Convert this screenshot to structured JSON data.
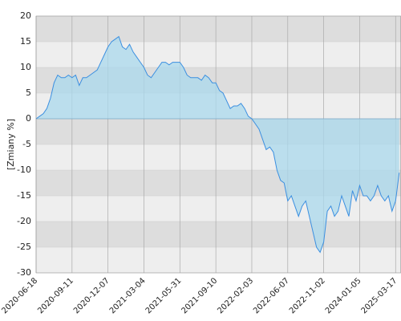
{
  "chart_data": {
    "type": "area",
    "ylabel": "[Zmiany %]",
    "categories": [
      "2020-06-18",
      null,
      null,
      null,
      null,
      null,
      null,
      null,
      null,
      null,
      "2020-09-11",
      null,
      null,
      null,
      null,
      null,
      null,
      null,
      null,
      null,
      "2020-12-07",
      null,
      null,
      null,
      null,
      null,
      null,
      null,
      null,
      null,
      "2021-03-04",
      null,
      null,
      null,
      null,
      null,
      null,
      null,
      null,
      null,
      "2021-05-31",
      null,
      null,
      null,
      null,
      null,
      null,
      null,
      null,
      null,
      "2021-09-10",
      null,
      null,
      null,
      null,
      null,
      null,
      null,
      null,
      null,
      "2022-02-03",
      null,
      null,
      null,
      null,
      null,
      null,
      null,
      null,
      null,
      "2022-06-07",
      null,
      null,
      null,
      null,
      null,
      null,
      null,
      null,
      null,
      "2022-11-02",
      null,
      null,
      null,
      null,
      null,
      null,
      null,
      null,
      null,
      "2024-01-05",
      null,
      null,
      null,
      null,
      null,
      null,
      null,
      null,
      null,
      "2025-03-17",
      null
    ],
    "values": [
      0,
      0.5,
      1,
      2,
      4,
      7,
      8.5,
      8,
      8,
      8.5,
      8,
      8.5,
      6.5,
      8,
      8,
      8.5,
      9,
      9.5,
      11,
      12.5,
      14,
      15,
      15.5,
      16,
      14,
      13.5,
      14.5,
      13,
      12,
      11,
      10,
      8.5,
      8,
      9,
      10,
      11,
      11,
      10.5,
      11,
      11,
      11,
      10,
      8.5,
      8,
      8,
      8,
      7.5,
      8.5,
      8,
      7,
      7,
      5.5,
      5,
      3.5,
      2,
      2.5,
      2.5,
      3,
      2,
      0.5,
      0,
      -1,
      -2,
      -4,
      -6,
      -5.5,
      -6.5,
      -10,
      -12,
      -12.5,
      -16,
      -15,
      -17,
      -19,
      -17,
      -16,
      -19,
      -22,
      -25,
      -26,
      -24,
      -18,
      -17,
      -19,
      -18,
      -15,
      -17,
      -19,
      -14,
      -16,
      -13,
      -15,
      -15,
      -16,
      -15,
      -13,
      -15,
      -16,
      -15,
      -18,
      -16,
      -10.5
    ],
    "line_color": "#3b8fe0",
    "fill_color": "#a9d8ec",
    "band_colors": [
      "#dddddd",
      "#eeeeee"
    ],
    "ylim": [
      -30,
      20
    ],
    "yticks": [
      20,
      15,
      10,
      5,
      0,
      -5,
      -10,
      -15,
      -20,
      -25,
      -30
    ],
    "grid": true
  }
}
